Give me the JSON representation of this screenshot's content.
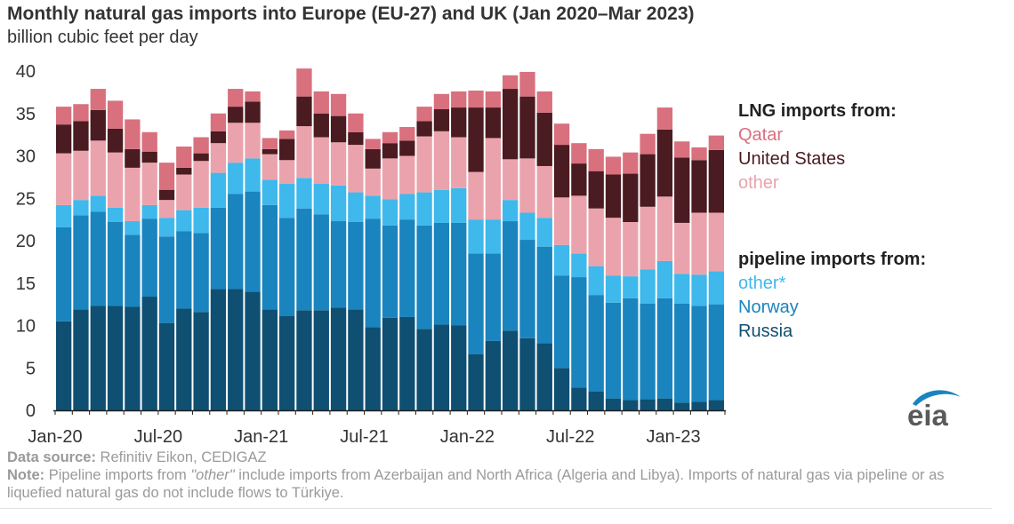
{
  "title": "Monthly natural gas imports into Europe (EU-27) and UK (Jan 2020–Mar 2023)",
  "subtitle": "billion cubic feet per day",
  "legend": {
    "lng_heading": "LNG imports from:",
    "lng_items": [
      {
        "label": "Qatar",
        "color": "#d9707e"
      },
      {
        "label": "United States",
        "color": "#4a1b20"
      },
      {
        "label": "other",
        "color": "#eaa3ac"
      }
    ],
    "pipeline_heading": "pipeline imports from:",
    "pipeline_items": [
      {
        "label": "other*",
        "color": "#3fb8ec"
      },
      {
        "label": "Norway",
        "color": "#1a84be"
      },
      {
        "label": "Russia",
        "color": "#0f4f72"
      }
    ]
  },
  "notes": {
    "source_label": "Data source:",
    "source_text": "Refinitiv Eikon, CEDIGAZ",
    "note_label": "Note:",
    "note_part1": "Pipeline imports from ",
    "note_quote": "\"other\"",
    "note_part2": " include imports from Azerbaijan and North Africa (Algeria and Libya). Imports of natural gas via pipeline or as liquefied natural gas do not include flows to Türkiye."
  },
  "logo_text": "eia",
  "chart_data": {
    "type": "bar",
    "stacked": true,
    "ylim": [
      0,
      40
    ],
    "y_ticks": [
      0,
      5,
      10,
      15,
      20,
      25,
      30,
      35,
      40
    ],
    "x_tick_labels": [
      {
        "index": 0,
        "label": "Jan-20"
      },
      {
        "index": 6,
        "label": "Jul-20"
      },
      {
        "index": 12,
        "label": "Jan-21"
      },
      {
        "index": 18,
        "label": "Jul-21"
      },
      {
        "index": 24,
        "label": "Jan-22"
      },
      {
        "index": 30,
        "label": "Jul-22"
      },
      {
        "index": 36,
        "label": "Jan-23"
      }
    ],
    "categories": [
      "2020-01",
      "2020-02",
      "2020-03",
      "2020-04",
      "2020-05",
      "2020-06",
      "2020-07",
      "2020-08",
      "2020-09",
      "2020-10",
      "2020-11",
      "2020-12",
      "2021-01",
      "2021-02",
      "2021-03",
      "2021-04",
      "2021-05",
      "2021-06",
      "2021-07",
      "2021-08",
      "2021-09",
      "2021-10",
      "2021-11",
      "2021-12",
      "2022-01",
      "2022-02",
      "2022-03",
      "2022-04",
      "2022-05",
      "2022-06",
      "2022-07",
      "2022-08",
      "2022-09",
      "2022-10",
      "2022-11",
      "2022-12",
      "2023-01",
      "2023-02",
      "2023-03"
    ],
    "series": [
      {
        "name": "Russia",
        "color": "#0f4f72",
        "values": [
          10.5,
          11.9,
          12.3,
          12.3,
          12.2,
          13.4,
          10.3,
          12.0,
          11.6,
          14.3,
          14.3,
          14.0,
          11.9,
          11.1,
          11.8,
          11.8,
          12.1,
          11.9,
          9.8,
          10.9,
          11.0,
          9.6,
          10.1,
          10.0,
          6.6,
          8.2,
          9.4,
          8.5,
          7.9,
          5.0,
          2.7,
          2.2,
          1.4,
          1.2,
          1.3,
          1.4,
          0.9,
          1.0,
          1.2
        ]
      },
      {
        "name": "Norway",
        "color": "#1a84be",
        "values": [
          11.1,
          11.1,
          11.1,
          9.9,
          8.5,
          9.2,
          10.2,
          9.1,
          9.3,
          9.6,
          11.2,
          11.8,
          12.3,
          11.6,
          12.0,
          11.3,
          10.2,
          10.3,
          12.8,
          10.9,
          11.5,
          12.2,
          12.0,
          12.1,
          11.9,
          10.3,
          12.9,
          11.6,
          11.4,
          10.9,
          13.0,
          11.4,
          11.3,
          12.0,
          11.3,
          11.8,
          11.7,
          11.3,
          11.3
        ]
      },
      {
        "name": "other*",
        "color": "#3fb8ec",
        "values": [
          2.6,
          1.8,
          1.9,
          1.7,
          1.6,
          1.6,
          2.2,
          2.5,
          3.0,
          4.1,
          3.7,
          3.9,
          3.0,
          4.0,
          3.6,
          3.6,
          4.2,
          3.5,
          2.7,
          3.1,
          3.0,
          3.9,
          3.9,
          4.1,
          4.0,
          4.0,
          2.5,
          3.2,
          3.4,
          3.6,
          2.8,
          3.4,
          3.2,
          2.6,
          4.0,
          4.4,
          3.5,
          3.7,
          3.9
        ]
      },
      {
        "name": "other",
        "color": "#eaa3ac",
        "values": [
          6.1,
          5.8,
          6.5,
          6.5,
          6.3,
          5.0,
          2.1,
          4.2,
          5.5,
          3.5,
          4.7,
          4.2,
          3.0,
          2.8,
          6.1,
          5.5,
          5.1,
          5.6,
          3.2,
          4.8,
          4.5,
          6.6,
          6.9,
          6.0,
          5.6,
          9.6,
          4.8,
          6.4,
          6.1,
          5.6,
          6.8,
          6.8,
          6.8,
          6.4,
          7.4,
          7.6,
          6.0,
          7.3,
          6.9
        ]
      },
      {
        "name": "United States",
        "color": "#4a1b20",
        "values": [
          3.4,
          3.5,
          3.6,
          2.8,
          2.2,
          1.3,
          1.2,
          0.8,
          0.9,
          1.4,
          1.9,
          2.5,
          0.6,
          2.5,
          3.5,
          2.8,
          3.1,
          1.5,
          2.3,
          1.8,
          1.8,
          1.8,
          2.6,
          3.5,
          7.6,
          3.6,
          8.3,
          7.3,
          6.3,
          6.2,
          3.8,
          4.4,
          5.1,
          5.7,
          6.2,
          7.9,
          7.7,
          6.2,
          7.4
        ]
      },
      {
        "name": "Qatar",
        "color": "#d9707e",
        "values": [
          2.1,
          2.0,
          2.5,
          3.3,
          3.5,
          2.3,
          3.2,
          2.5,
          1.9,
          2.1,
          2.1,
          1.2,
          1.3,
          1.0,
          3.3,
          2.6,
          2.6,
          2.2,
          1.2,
          1.3,
          1.6,
          1.7,
          1.8,
          1.9,
          2.0,
          1.9,
          1.6,
          2.9,
          2.5,
          2.5,
          2.4,
          2.6,
          2.1,
          2.5,
          2.4,
          2.6,
          1.9,
          1.5,
          1.7
        ]
      }
    ]
  }
}
